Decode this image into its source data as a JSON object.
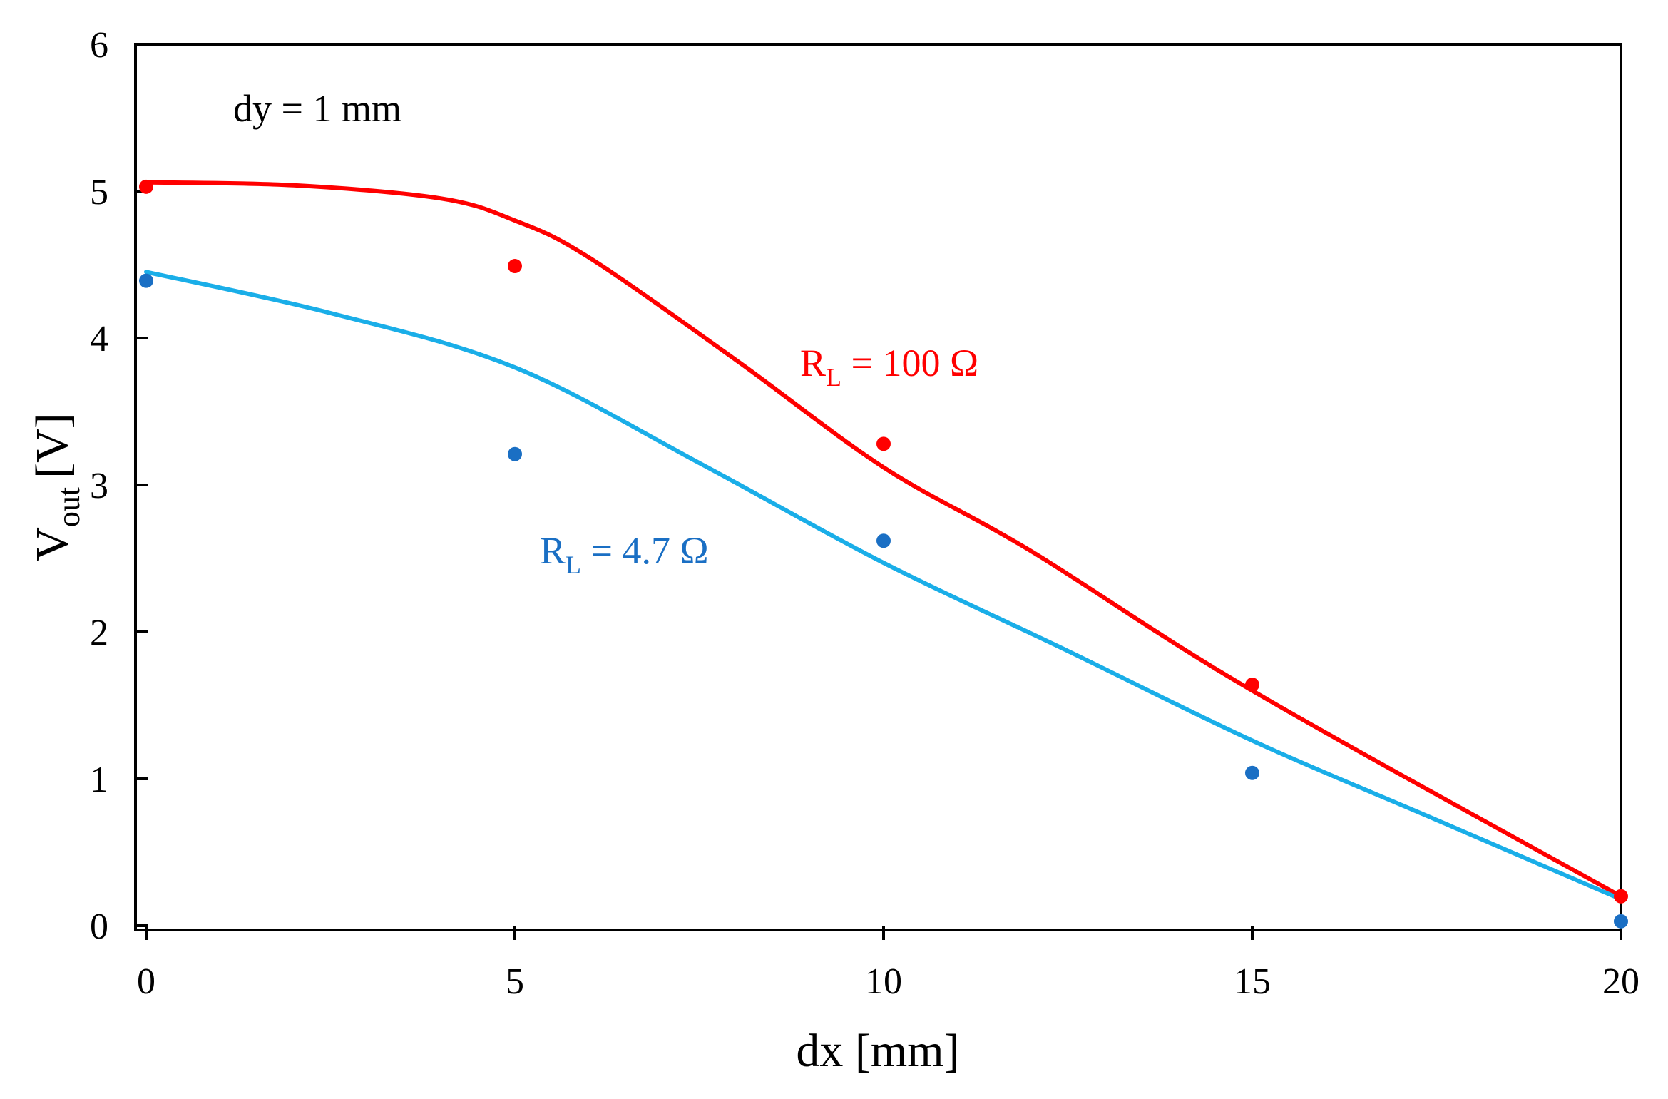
{
  "chart_data": {
    "type": "scatter",
    "title": "",
    "xlabel": "dx [mm]",
    "ylabel": {
      "main": "V",
      "sub": "out",
      "unit": "[V]"
    },
    "xlim": [
      0,
      20
    ],
    "ylim": [
      0,
      6
    ],
    "xticks": [
      0,
      5,
      10,
      15,
      20
    ],
    "yticks": [
      0,
      1,
      2,
      3,
      4,
      5,
      6
    ],
    "grid": false,
    "annotation": "dy = 1 mm",
    "series": [
      {
        "name": "RL = 100 Ω",
        "label_main": "R",
        "label_sub": "L",
        "label_rest": " = 100 Ω",
        "color": "#ff0000",
        "points": {
          "x": [
            0,
            5,
            10,
            15,
            20
          ],
          "y": [
            5.03,
            4.49,
            3.28,
            1.64,
            0.2
          ]
        },
        "fit": {
          "x": [
            0,
            2,
            4,
            5,
            6,
            8,
            10,
            12,
            15,
            20
          ],
          "y": [
            5.06,
            5.04,
            4.95,
            4.8,
            4.55,
            3.85,
            3.12,
            2.55,
            1.6,
            0.2
          ]
        }
      },
      {
        "name": "RL = 4.7 Ω",
        "label_main": "R",
        "label_sub": "L",
        "label_rest": " = 4.7 Ω",
        "color": "#1a6fc4",
        "line_color": "#1aaee8",
        "points": {
          "x": [
            0,
            5,
            10,
            15,
            20
          ],
          "y": [
            4.39,
            3.21,
            2.62,
            1.04,
            0.03
          ]
        },
        "fit": {
          "x": [
            0,
            2.5,
            5,
            7.5,
            10,
            12.5,
            15,
            17.5,
            20
          ],
          "y": [
            4.45,
            4.17,
            3.8,
            3.15,
            2.47,
            1.87,
            1.26,
            0.72,
            0.18
          ]
        }
      }
    ]
  }
}
